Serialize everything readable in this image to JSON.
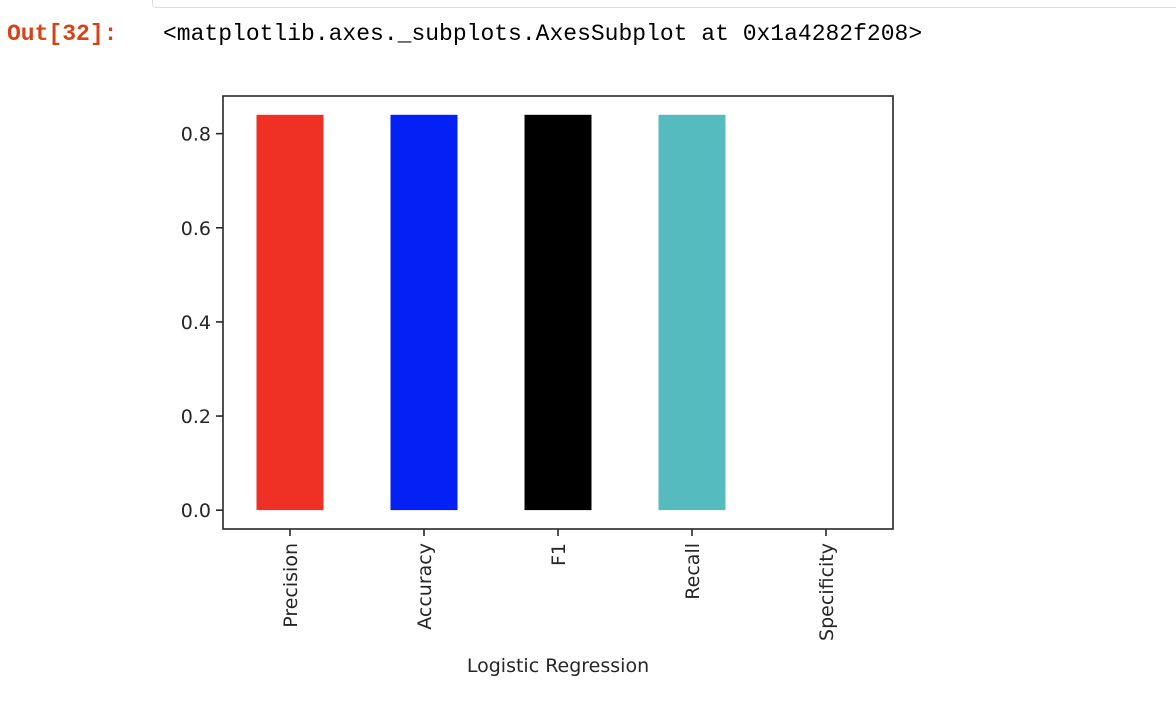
{
  "output": {
    "prompt": "Out[32]:",
    "text": "<matplotlib.axes._subplots.AxesSubplot at 0x1a4282f208>"
  },
  "chart_data": {
    "type": "bar",
    "categories": [
      "Precision",
      "Accuracy",
      "F1",
      "Recall",
      "Specificity"
    ],
    "values": [
      0.84,
      0.84,
      0.84,
      0.84,
      null
    ],
    "colors": [
      "#ee3124",
      "#0320f5",
      "#000000",
      "#55bbbf",
      "#ffffff"
    ],
    "xlabel": "Logistic Regression",
    "ylabel": "",
    "ylim": [
      -0.04,
      0.88
    ],
    "yticks": [
      0.0,
      0.2,
      0.4,
      0.6,
      0.8
    ],
    "ytick_labels": [
      "0.0",
      "0.2",
      "0.4",
      "0.6",
      "0.8"
    ],
    "grid": false,
    "legend": "none"
  }
}
